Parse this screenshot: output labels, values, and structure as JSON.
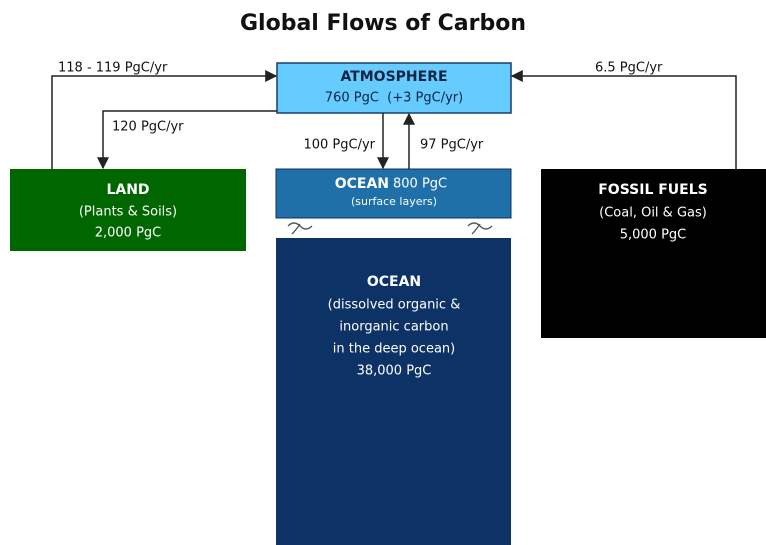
{
  "title": "Global Flows of Carbon",
  "nodes": [
    {
      "label": "ATMOSPHERE",
      "amount": "760 PgC  (+3 PgC/yr)"
    },
    {
      "label": "LAND",
      "detail": "(Plants & Soils)",
      "amount": "2,000 PgC"
    },
    {
      "label": "OCEAN",
      "amount": "800 PgC",
      "detail": "(surface layers)"
    },
    {
      "label": "OCEAN",
      "detail": [
        "(dissolved organic &",
        "inorganic carbon",
        "in the deep ocean)"
      ],
      "amount": "38,000 PgC"
    },
    {
      "label": "FOSSIL FUELS",
      "detail": "(Coal, Oil & Gas)",
      "amount": "5,000 PgC"
    }
  ],
  "flows": [
    {
      "label": "118 - 119 PgC/yr"
    },
    {
      "label": "120 PgC/yr"
    },
    {
      "label": "100 PgC/yr"
    },
    {
      "label": "97 PgC/yr"
    },
    {
      "label": "6.5 PgC/yr"
    }
  ]
}
